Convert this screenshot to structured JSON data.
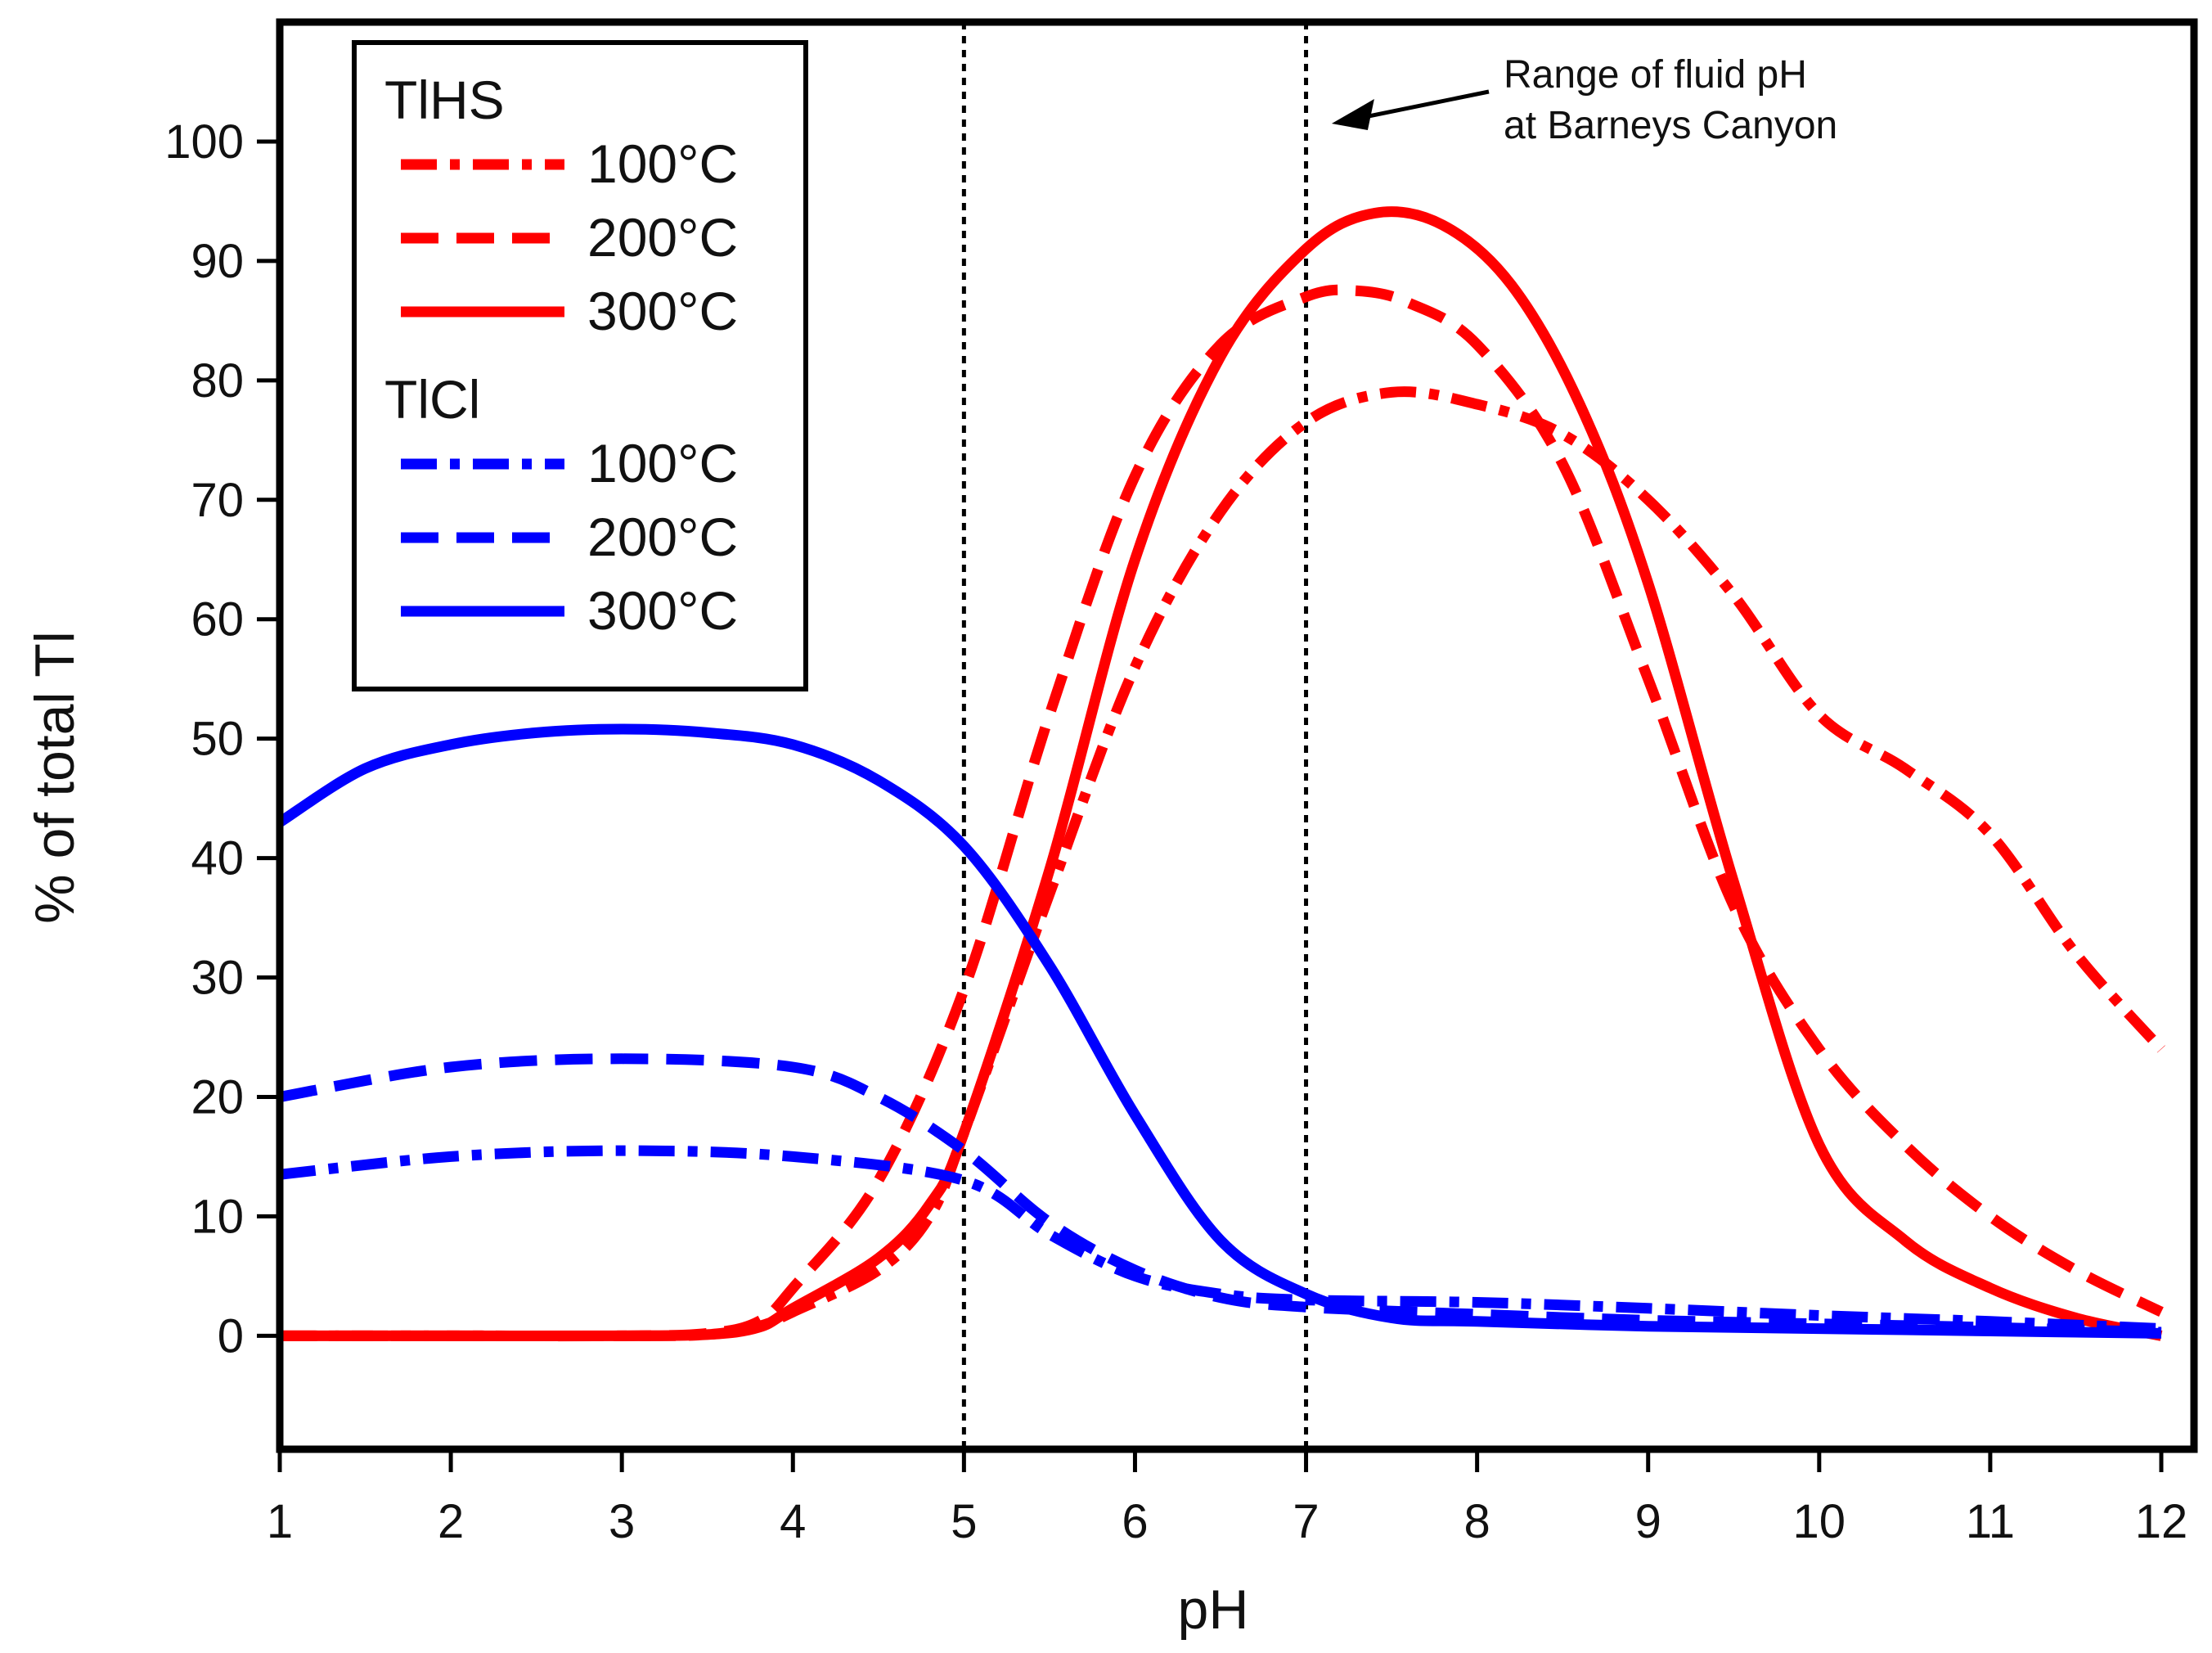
{
  "chart_data": {
    "type": "line",
    "title": "",
    "xlabel": "pH",
    "ylabel": "% of total Tl",
    "xlim": [
      1,
      12
    ],
    "ylim": [
      -9.5,
      110
    ],
    "xticks": [
      1,
      2,
      3,
      4,
      5,
      6,
      7,
      8,
      9,
      10,
      11,
      12
    ],
    "yticks": [
      0,
      10,
      20,
      30,
      40,
      50,
      60,
      70,
      80,
      90,
      100
    ],
    "grid": false,
    "legend": {
      "position": "top-left",
      "groups": [
        {
          "title": "TlHS",
          "entries": [
            "100°C",
            "200°C",
            "300°C"
          ]
        },
        {
          "title": "TlCl",
          "entries": [
            "100°C",
            "200°C",
            "300°C"
          ]
        }
      ]
    },
    "reference_lines": [
      {
        "axis": "x",
        "value": 5,
        "style": "dotted"
      },
      {
        "axis": "x",
        "value": 7,
        "style": "dotted"
      }
    ],
    "annotation": {
      "lines": [
        "Range of fluid pH",
        "at Barneys Canyon"
      ],
      "points_to": {
        "x": 7.15,
        "y": 101.5
      }
    },
    "series": [
      {
        "name": "TlHS 100°C",
        "group": "TlHS",
        "color": "#ff0000",
        "dash": "dashdot",
        "x": [
          1,
          2,
          3,
          3.5,
          3.8,
          4,
          4.5,
          4.8,
          5,
          5.5,
          6,
          6.5,
          7,
          7.5,
          8,
          8.5,
          9,
          9.5,
          10,
          10.5,
          11,
          11.5,
          12
        ],
        "y": [
          0,
          0,
          0,
          0.1,
          0.8,
          2,
          5.5,
          10,
          17,
          37,
          56,
          69,
          76.5,
          79,
          78,
          75.5,
          70,
          62,
          52,
          47.5,
          42,
          32,
          24
        ]
      },
      {
        "name": "TlHS 200°C",
        "group": "TlHS",
        "color": "#ff0000",
        "dash": "dash",
        "x": [
          1,
          2,
          3,
          3.5,
          3.8,
          4,
          4.5,
          5,
          5.5,
          6,
          6.5,
          7,
          7.3,
          7.6,
          8,
          8.5,
          9,
          9.5,
          10,
          10.5,
          11,
          11.5,
          12
        ],
        "y": [
          0,
          0,
          0,
          0.2,
          1.2,
          4,
          13,
          29,
          52,
          72,
          83,
          87,
          87.5,
          86.5,
          83,
          73,
          55,
          36,
          24,
          16,
          10,
          5.5,
          2
        ]
      },
      {
        "name": "TlHS 300°C",
        "group": "TlHS",
        "color": "#ff0000",
        "dash": "solid",
        "x": [
          1,
          2,
          3,
          3.5,
          3.8,
          4,
          4.5,
          4.8,
          5,
          5.5,
          6,
          6.5,
          7,
          7.4,
          7.8,
          8.2,
          8.6,
          9,
          9.5,
          10,
          10.5,
          11,
          11.5,
          12
        ],
        "y": [
          0,
          0,
          0,
          0.1,
          0.7,
          2.3,
          6.5,
          11,
          17,
          39,
          65,
          82,
          91,
          94,
          93,
          88,
          78,
          63,
          38,
          16,
          8,
          4,
          1.5,
          0
        ]
      },
      {
        "name": "TlCl 100°C",
        "group": "TlCl",
        "color": "#0000ff",
        "dash": "dashdot",
        "x": [
          1,
          2,
          3,
          4,
          5,
          5.5,
          6,
          6.5,
          7,
          8,
          9,
          10,
          11,
          12
        ],
        "y": [
          13.5,
          15,
          15.5,
          15,
          13,
          8.5,
          5,
          3.5,
          3,
          2.8,
          2.3,
          1.7,
          1.2,
          0.6
        ]
      },
      {
        "name": "TlCl 200°C",
        "group": "TlCl",
        "color": "#0000ff",
        "dash": "dash",
        "x": [
          1,
          2,
          3,
          4,
          4.5,
          5,
          5.5,
          6,
          6.5,
          7,
          8,
          9,
          10,
          11,
          12
        ],
        "y": [
          20,
          22.5,
          23.2,
          22.5,
          20,
          15.5,
          9.5,
          5.5,
          3.2,
          2.4,
          1.8,
          1.3,
          1,
          0.7,
          0.3
        ]
      },
      {
        "name": "TlCl 300°C",
        "group": "TlCl",
        "color": "#0000ff",
        "dash": "solid",
        "x": [
          1,
          1.5,
          2,
          2.5,
          3,
          3.5,
          4,
          4.5,
          5,
          5.5,
          6,
          6.5,
          7,
          7.5,
          8,
          9,
          10,
          11,
          12
        ],
        "y": [
          43,
          47.5,
          49.5,
          50.5,
          50.8,
          50.5,
          49.5,
          46.5,
          41,
          31,
          18.5,
          8,
          3.5,
          1.5,
          1.2,
          0.8,
          0.6,
          0.4,
          0.2
        ]
      }
    ]
  }
}
